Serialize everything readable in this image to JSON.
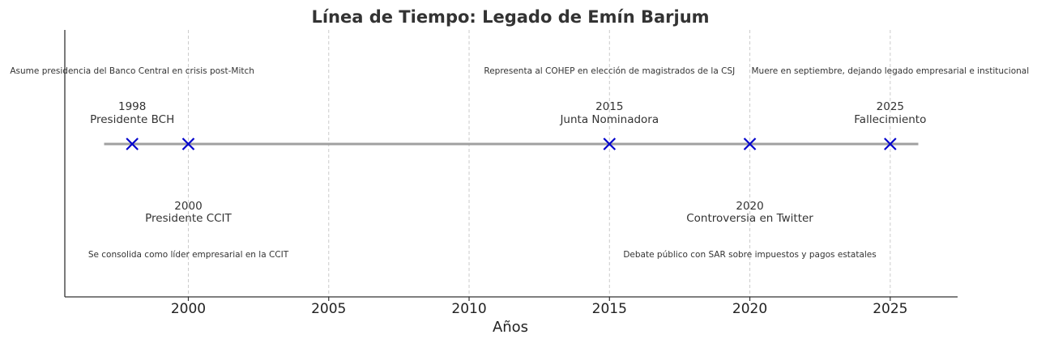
{
  "chart_data": {
    "type": "scatter",
    "title": "Línea de Tiempo: Legado de Emín Barjum",
    "xlabel": "Años",
    "ylabel": "",
    "xlim": [
      1995.6,
      2027.4
    ],
    "x_ticks": [
      2000,
      2005,
      2010,
      2015,
      2020,
      2025
    ],
    "grid": "x-dashed",
    "timeline_range": [
      1997,
      2026
    ],
    "colors": {
      "marker": "#0000cc",
      "line": "#a0a0a0",
      "grid": "#cccccc",
      "axis": "#333333"
    },
    "marker": "x",
    "events": [
      {
        "year": 1998,
        "year_label": "1998",
        "label": "Presidente BCH",
        "description": "Asume presidencia del Banco Central en crisis post-Mitch",
        "side": "above"
      },
      {
        "year": 2000,
        "year_label": "2000",
        "label": "Presidente CCIT",
        "description": "Se consolida como líder empresarial en la CCIT",
        "side": "below"
      },
      {
        "year": 2015,
        "year_label": "2015",
        "label": "Junta Nominadora",
        "description": "Representa al COHEP en elección de magistrados de la CSJ",
        "side": "above"
      },
      {
        "year": 2020,
        "year_label": "2020",
        "label": "Controversia en Twitter",
        "description": "Debate público con SAR sobre impuestos y pagos estatales",
        "side": "below"
      },
      {
        "year": 2025,
        "year_label": "2025",
        "label": "Fallecimiento",
        "description": "Muere en septiembre, dejando legado empresarial e institucional",
        "side": "above"
      }
    ]
  }
}
